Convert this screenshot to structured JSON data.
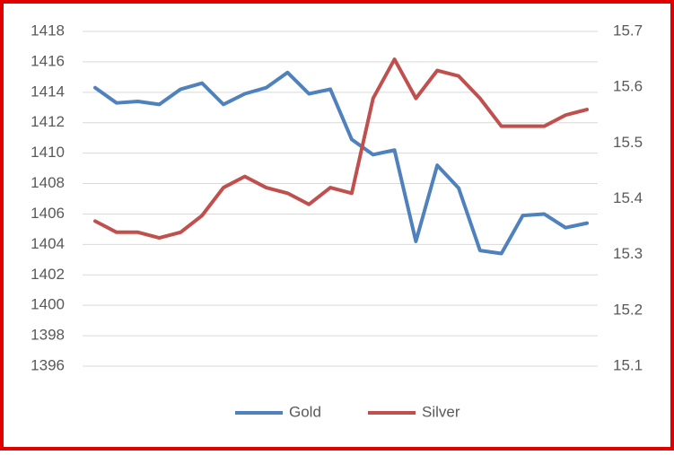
{
  "chart_data": {
    "type": "line",
    "categories": [
      null,
      null,
      null,
      null,
      null,
      null,
      null,
      null,
      null,
      null,
      null,
      null,
      null,
      null,
      null,
      null,
      null,
      null,
      null,
      null,
      null,
      null,
      null,
      null
    ],
    "series": [
      {
        "name": "Gold",
        "color": "#4f81bd",
        "values": [
          1414.3,
          1413.3,
          1413.4,
          1413.2,
          1414.2,
          1414.6,
          1413.2,
          1413.9,
          1414.3,
          1415.3,
          1413.9,
          1414.2,
          1410.9,
          1409.9,
          1410.2,
          1404.2,
          1409.2,
          1407.7,
          1403.6,
          1403.4,
          1405.9,
          1406.0,
          1405.1,
          1405.4
        ]
      },
      {
        "name": "Silver",
        "color": "#c0504d",
        "axis": "y2",
        "values": [
          15.36,
          15.34,
          15.34,
          15.33,
          15.34,
          15.37,
          15.42,
          15.44,
          15.42,
          15.41,
          15.39,
          15.42,
          15.41,
          15.58,
          15.65,
          15.58,
          15.63,
          15.62,
          15.58,
          15.53,
          15.53,
          15.53,
          15.55,
          15.56
        ]
      }
    ],
    "ylim": [
      1396,
      1418
    ],
    "yticks": [
      1396,
      1398,
      1400,
      1402,
      1404,
      1406,
      1408,
      1410,
      1412,
      1414,
      1416,
      1418
    ],
    "y2lim": [
      15.1,
      15.7
    ],
    "y2ticks": [
      15.1,
      15.2,
      15.3,
      15.4,
      15.5,
      15.6,
      15.7
    ],
    "grid": true,
    "legend": "bottom"
  }
}
